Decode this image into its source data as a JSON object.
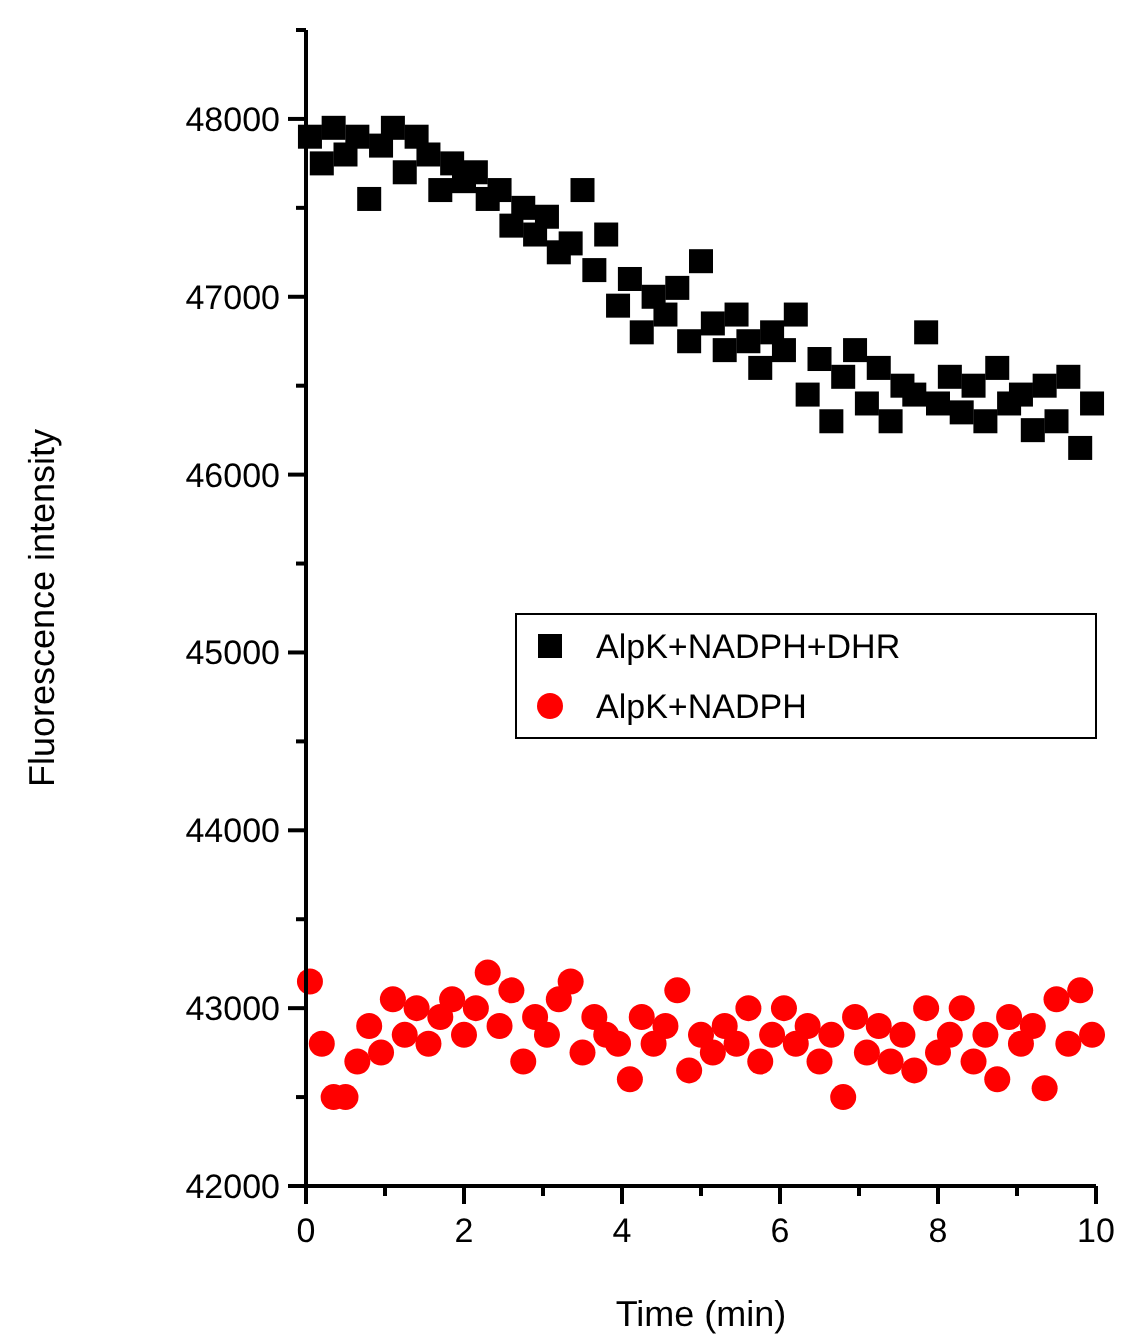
{
  "chart_data": {
    "type": "scatter",
    "xlabel": "Time (min)",
    "ylabel": "Fluorescence intensity",
    "x": [
      0.05,
      0.2,
      0.35,
      0.5,
      0.65,
      0.8,
      0.95,
      1.1,
      1.25,
      1.4,
      1.55,
      1.7,
      1.85,
      2.0,
      2.15,
      2.3,
      2.45,
      2.6,
      2.75,
      2.9,
      3.05,
      3.2,
      3.35,
      3.5,
      3.65,
      3.8,
      3.95,
      4.1,
      4.25,
      4.4,
      4.55,
      4.7,
      4.85,
      5.0,
      5.15,
      5.3,
      5.45,
      5.6,
      5.75,
      5.9,
      6.05,
      6.2,
      6.35,
      6.5,
      6.65,
      6.8,
      6.95,
      7.1,
      7.25,
      7.4,
      7.55,
      7.7,
      7.85,
      8.0,
      8.15,
      8.3,
      8.45,
      8.6,
      8.75,
      8.9,
      9.05,
      9.2,
      9.35,
      9.5,
      9.65,
      9.8,
      9.95
    ],
    "series": [
      {
        "name": "AlpK+NADPH+DHR",
        "color": "#000000",
        "marker": "square",
        "values": [
          47900,
          47750,
          47950,
          47800,
          47900,
          47550,
          47850,
          47950,
          47700,
          47900,
          47800,
          47600,
          47750,
          47650,
          47700,
          47550,
          47600,
          47400,
          47500,
          47350,
          47450,
          47250,
          47300,
          47600,
          47150,
          47350,
          46950,
          47100,
          46800,
          47000,
          46900,
          47050,
          46750,
          47200,
          46850,
          46700,
          46900,
          46750,
          46600,
          46800,
          46700,
          46900,
          46450,
          46650,
          46300,
          46550,
          46700,
          46400,
          46600,
          46300,
          46500,
          46450,
          46800,
          46400,
          46550,
          46350,
          46500,
          46300,
          46600,
          46400,
          46450,
          46250,
          46500,
          46300,
          46550,
          46150,
          46400
        ]
      },
      {
        "name": "AlpK+NADPH",
        "color": "#ff0000",
        "marker": "circle",
        "values": [
          43150,
          42800,
          42500,
          42500,
          42700,
          42900,
          42750,
          43050,
          42850,
          43000,
          42800,
          42950,
          43050,
          42850,
          43000,
          43200,
          42900,
          43100,
          42700,
          42950,
          42850,
          43050,
          43150,
          42750,
          42950,
          42850,
          42800,
          42600,
          42950,
          42800,
          42900,
          43100,
          42650,
          42850,
          42750,
          42900,
          42800,
          43000,
          42700,
          42850,
          43000,
          42800,
          42900,
          42700,
          42850,
          42500,
          42950,
          42750,
          42900,
          42700,
          42850,
          42650,
          43000,
          42750,
          42850,
          43000,
          42700,
          42850,
          42600,
          42950,
          42800,
          42900,
          42550,
          43050,
          42800,
          43100,
          42850
        ]
      }
    ],
    "xlim": [
      0,
      10
    ],
    "xticks": [
      0,
      {
        "value": 1,
        "label": null
      },
      2,
      {
        "value": 3,
        "label": null
      },
      4,
      {
        "value": 5,
        "label": null
      },
      6,
      {
        "value": 7,
        "label": null
      },
      8,
      {
        "value": 9,
        "label": null
      },
      10
    ],
    "ylim": [
      42000,
      48500
    ],
    "yticks": [
      42000,
      {
        "value": 42500,
        "label": null
      },
      43000,
      {
        "value": 43500,
        "label": null
      },
      44000,
      {
        "value": 44500,
        "label": null
      },
      45000,
      {
        "value": 45500,
        "label": null
      },
      46000,
      {
        "value": 46500,
        "label": null
      },
      47000,
      {
        "value": 47500,
        "label": null
      },
      48000,
      {
        "value": 48500,
        "label": null
      }
    ],
    "grid": false,
    "legend": "right"
  }
}
